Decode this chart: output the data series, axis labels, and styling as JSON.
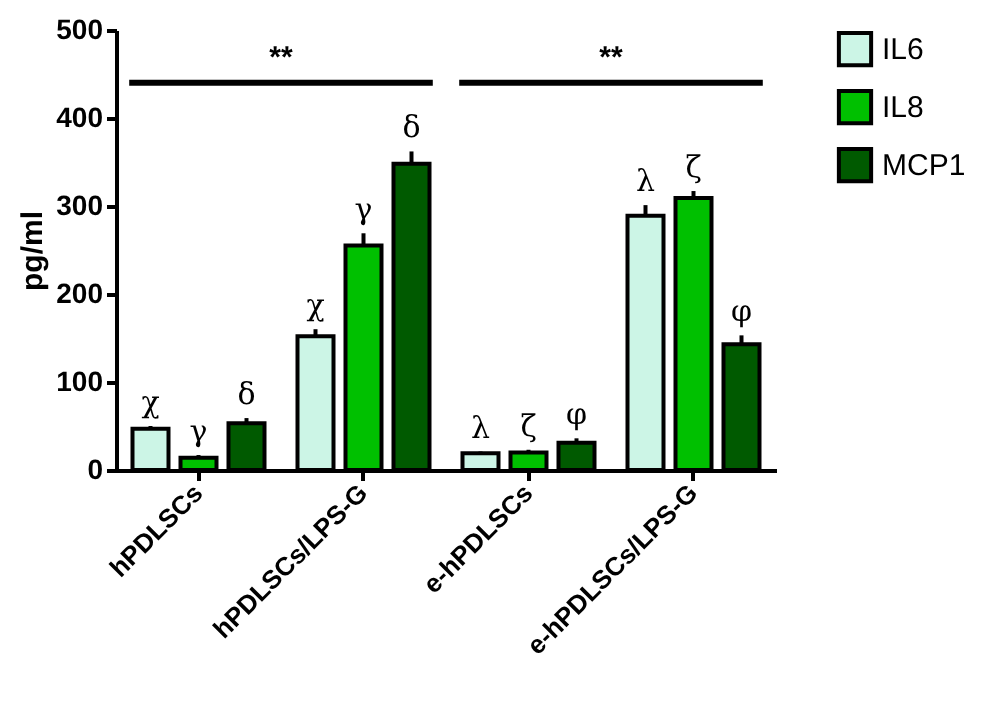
{
  "chart_data": {
    "type": "bar",
    "ylabel": "pg/ml",
    "categories": [
      "hPDLSCs",
      "hPDLSCs/LPS-G",
      "e-hPDLSCs",
      "e-hPDLSCs/LPS-G"
    ],
    "series": [
      {
        "name": "IL6",
        "color": "#ccf5e6",
        "values": [
          47,
          152,
          19,
          289
        ],
        "errors": [
          3,
          8,
          2,
          12
        ]
      },
      {
        "name": "IL8",
        "color": "#00c000",
        "values": [
          14,
          255,
          20,
          309
        ],
        "errors": [
          3,
          14,
          3,
          8
        ]
      },
      {
        "name": "MCP1",
        "color": "#005a00",
        "values": [
          53,
          348,
          31,
          143
        ],
        "errors": [
          6,
          14,
          5,
          10
        ]
      }
    ],
    "ylim": [
      0,
      500
    ],
    "yticks": [
      0,
      100,
      200,
      300,
      400,
      500
    ],
    "grid": false,
    "legend": "top right",
    "annotations": [
      "χ",
      "γ",
      "δ",
      "χ",
      "γ",
      "δ",
      "λ",
      "ζ",
      "φ",
      "λ",
      "ζ",
      "φ",
      "**",
      "**"
    ]
  }
}
